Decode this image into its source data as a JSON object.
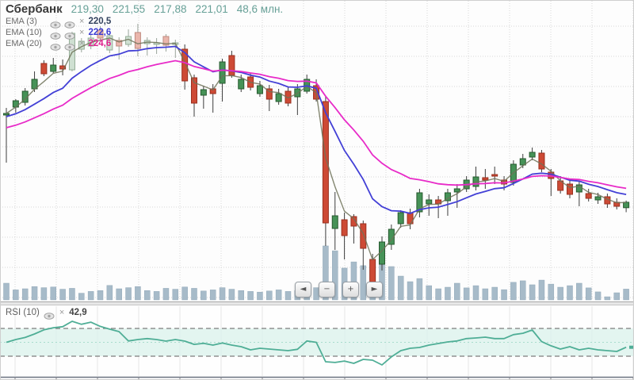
{
  "header": {
    "instrument": "Сбербанк",
    "open": "219,30",
    "high": "221,55",
    "low": "217,88",
    "close": "221,01",
    "volume": "48,6 млн."
  },
  "indicators": [
    {
      "label": "EMA (3)",
      "value": "220,5",
      "color": "#33425e"
    },
    {
      "label": "EMA (10)",
      "value": "222,6",
      "color": "#3c3cd2"
    },
    {
      "label": "EMA (20)",
      "value": "224,6",
      "color": "#e0218f"
    }
  ],
  "rsi_row": {
    "label": "RSI (10)",
    "value": "42,9"
  },
  "nav": {
    "back": "◄",
    "zoom_out": "−",
    "zoom_in": "+",
    "forward": "►"
  },
  "chart_data": {
    "type": "candlestick",
    "title": "Сбербанк",
    "panels": [
      "price+volume",
      "rsi"
    ],
    "last_ohlc": {
      "open": 219.3,
      "high": 221.55,
      "low": 217.88,
      "close": 221.01,
      "volume_mln": 48.6
    },
    "ema_periods": [
      3,
      10,
      20
    ],
    "ema_last_values": [
      220.5,
      222.6,
      224.6
    ],
    "rsi": {
      "period": 10,
      "last_value": 42.9,
      "upper_level": 70,
      "lower_level": 30,
      "values": [
        50,
        54,
        57,
        62,
        68,
        71,
        72.5,
        80.3,
        76,
        79,
        73,
        69,
        65.4,
        52,
        54,
        55.4,
        54,
        51.7,
        54,
        51.7,
        47,
        48.5,
        46,
        49,
        46,
        43.7,
        39.1,
        41.4,
        40.3,
        39.1,
        38,
        40,
        52,
        50,
        22,
        21,
        23,
        19.7,
        25.4,
        24.3,
        17.4,
        29,
        38,
        41.4,
        42.6,
        46,
        48.3,
        50.6,
        52,
        55.4,
        56.3,
        57.4,
        55.4,
        55.4,
        61.1,
        63,
        67.7,
        51,
        45,
        40.3,
        43.7,
        39.1,
        41.4,
        39.1,
        38,
        36.9,
        42.9
      ]
    },
    "pale_range": [
      7,
      18
    ],
    "candles": [
      [
        248.75,
        250.75,
        233.5,
        249,
        75
      ],
      [
        251,
        253.5,
        249.25,
        253,
        45
      ],
      [
        252.5,
        257,
        251.5,
        256,
        50
      ],
      [
        256.75,
        262.25,
        255.75,
        259.75,
        60
      ],
      [
        264.75,
        265.75,
        260.75,
        261.5,
        55
      ],
      [
        262.25,
        266.5,
        261.75,
        264.25,
        58
      ],
      [
        264,
        266,
        261,
        263,
        48
      ],
      [
        262.75,
        274.75,
        262.25,
        274.25,
        52
      ],
      [
        269.25,
        272.75,
        268.25,
        271.75,
        30
      ],
      [
        270.25,
        273.75,
        269.25,
        272.75,
        38
      ],
      [
        275.25,
        276.5,
        272.25,
        272.75,
        42
      ],
      [
        269,
        274,
        268,
        273.5,
        65
      ],
      [
        272,
        273,
        266,
        270.25,
        50
      ],
      [
        270.75,
        275.5,
        270,
        273.25,
        55
      ],
      [
        274.5,
        277.25,
        267,
        269.5,
        60
      ],
      [
        271,
        273,
        267.25,
        272,
        42
      ],
      [
        270.75,
        272.75,
        267.75,
        271.25,
        38
      ],
      [
        273.25,
        274,
        268.5,
        270.5,
        52
      ],
      [
        270.75,
        272.25,
        266.5,
        271.25,
        48
      ],
      [
        269.25,
        270.75,
        256.5,
        259.25,
        58
      ],
      [
        260.25,
        261.25,
        248,
        252.25,
        52
      ],
      [
        254.75,
        257.75,
        250.5,
        256.5,
        40
      ],
      [
        256.75,
        258.25,
        249.25,
        255.25,
        45
      ],
      [
        258.5,
        266.25,
        252.75,
        265.25,
        55
      ],
      [
        267.25,
        268.75,
        260.25,
        261,
        48
      ],
      [
        256.75,
        261.25,
        255.75,
        259.75,
        42
      ],
      [
        260.5,
        261.75,
        256.25,
        257.25,
        38
      ],
      [
        255.25,
        259.25,
        254.25,
        257.75,
        35
      ],
      [
        256.75,
        258,
        249.75,
        253.5,
        40
      ],
      [
        252.75,
        256.75,
        251.75,
        255.25,
        45
      ],
      [
        256,
        257.25,
        251.25,
        252.25,
        38
      ],
      [
        254.25,
        258.25,
        248.5,
        256.75,
        42
      ],
      [
        256,
        261.25,
        255.25,
        259.75,
        48
      ],
      [
        257.75,
        259.75,
        252.75,
        253.5,
        55
      ],
      [
        252.75,
        254.25,
        207.25,
        214.5,
        243
      ],
      [
        212.75,
        224.25,
        206,
        216.75,
        221
      ],
      [
        215.5,
        217.75,
        203,
        210.5,
        143
      ],
      [
        216.5,
        217.25,
        208,
        213.5,
        171
      ],
      [
        214.25,
        215.25,
        199.75,
        206.5,
        154
      ],
      [
        203,
        204.75,
        192.25,
        194.75,
        136
      ],
      [
        201.5,
        210.25,
        199.5,
        208.5,
        161
      ],
      [
        207.75,
        214,
        206,
        212.5,
        150
      ],
      [
        214.25,
        218.5,
        213,
        217.75,
        107
      ],
      [
        217.75,
        219,
        212.5,
        214.25,
        82
      ],
      [
        218,
        225.25,
        216.25,
        224,
        96
      ],
      [
        220.5,
        223.5,
        216.75,
        221.75,
        64
      ],
      [
        221.75,
        223,
        216,
        220.5,
        50
      ],
      [
        221.5,
        225.25,
        216.75,
        224,
        57
      ],
      [
        224.25,
        226.75,
        219.25,
        225.25,
        75
      ],
      [
        225.25,
        229.25,
        224.25,
        228,
        54
      ],
      [
        226,
        232.25,
        224.75,
        229,
        64
      ],
      [
        228.75,
        231.5,
        225.25,
        228,
        50
      ],
      [
        229.75,
        232.25,
        226.75,
        229.25,
        57
      ],
      [
        228,
        229.25,
        224.75,
        226.75,
        46
      ],
      [
        227.25,
        234.25,
        226.25,
        233,
        79
      ],
      [
        232.75,
        236.25,
        231.75,
        234.75,
        86
      ],
      [
        235.25,
        238.25,
        234.25,
        236.75,
        68
      ],
      [
        236.5,
        237.5,
        230.5,
        231.5,
        89
      ],
      [
        230.5,
        231.5,
        223,
        228.5,
        71
      ],
      [
        227.75,
        229.25,
        223.75,
        224.75,
        57
      ],
      [
        226.75,
        228.25,
        222.25,
        223.5,
        64
      ],
      [
        224.25,
        227.75,
        219.75,
        226.5,
        75
      ],
      [
        223.75,
        225.25,
        221.25,
        222.25,
        54
      ],
      [
        221.75,
        224,
        220.5,
        222.75,
        36
      ],
      [
        222.75,
        223.75,
        219.25,
        220.5,
        14
      ],
      [
        221,
        222.25,
        218.75,
        219.75,
        32
      ],
      [
        219.3,
        221.55,
        217.88,
        221.01,
        48.6
      ]
    ],
    "colors": {
      "up": "#469257",
      "up_border": "#27592f",
      "down": "#cd4a35",
      "down_border": "#99301f",
      "pale_up": "#cfe0d2",
      "pale_up_border": "#94ad97",
      "pale_down": "#eab6ac",
      "pale_down_border": "#c08a7f",
      "volume": "#a7bbc9",
      "ema3": "#6e7258",
      "ema10": "#4340d6",
      "ema20": "#e82bc8",
      "rsi_line": "#4fae96",
      "rsi_band": "#dcf3ec",
      "quote_text": "#67a097"
    }
  }
}
